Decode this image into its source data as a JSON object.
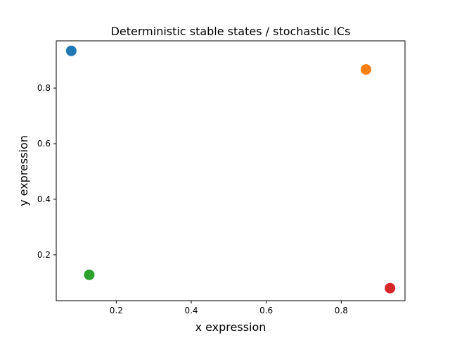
{
  "chart_data": {
    "type": "scatter",
    "title": "Deterministic stable states / stochastic ICs",
    "xlabel": "x expression",
    "ylabel": "y expression",
    "xlim": [
      0.04,
      0.97
    ],
    "ylim": [
      0.035,
      0.97
    ],
    "xticks": [
      0.2,
      0.4,
      0.6,
      0.8
    ],
    "xtick_labels": [
      "0.2",
      "0.4",
      "0.6",
      "0.8"
    ],
    "yticks": [
      0.2,
      0.4,
      0.6,
      0.8
    ],
    "ytick_labels": [
      "0.2",
      "0.4",
      "0.6",
      "0.8"
    ],
    "grid": false,
    "legend": "none",
    "points": [
      {
        "x": 0.08,
        "y": 0.934,
        "color": "#1f77b4"
      },
      {
        "x": 0.866,
        "y": 0.867,
        "color": "#ff7f0e"
      },
      {
        "x": 0.128,
        "y": 0.128,
        "color": "#2ca02c"
      },
      {
        "x": 0.93,
        "y": 0.08,
        "color": "#d62728"
      }
    ]
  }
}
